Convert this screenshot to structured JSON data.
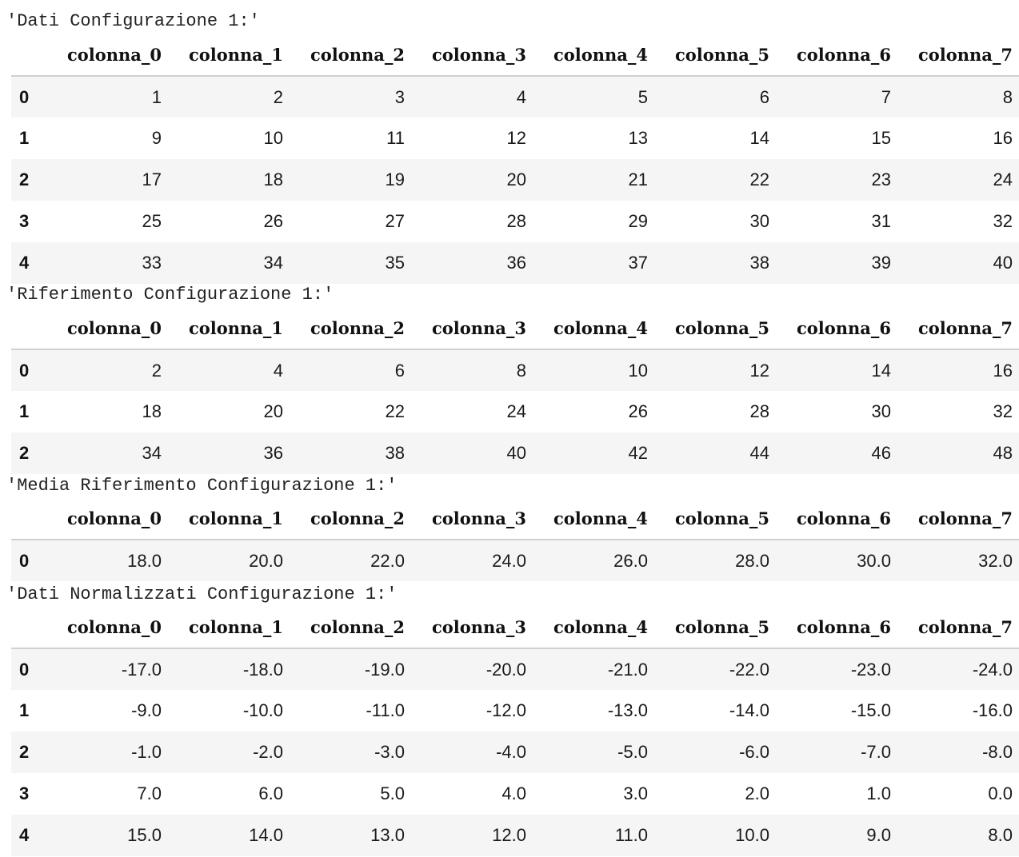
{
  "columns": [
    "colonna_0",
    "colonna_1",
    "colonna_2",
    "colonna_3",
    "colonna_4",
    "colonna_5",
    "colonna_6",
    "colonna_7"
  ],
  "sections": [
    {
      "label": "'Dati Configurazione 1:'",
      "index": [
        "0",
        "1",
        "2",
        "3",
        "4"
      ],
      "rows": [
        [
          "1",
          "2",
          "3",
          "4",
          "5",
          "6",
          "7",
          "8"
        ],
        [
          "9",
          "10",
          "11",
          "12",
          "13",
          "14",
          "15",
          "16"
        ],
        [
          "17",
          "18",
          "19",
          "20",
          "21",
          "22",
          "23",
          "24"
        ],
        [
          "25",
          "26",
          "27",
          "28",
          "29",
          "30",
          "31",
          "32"
        ],
        [
          "33",
          "34",
          "35",
          "36",
          "37",
          "38",
          "39",
          "40"
        ]
      ]
    },
    {
      "label": "'Riferimento Configurazione 1:'",
      "index": [
        "0",
        "1",
        "2"
      ],
      "rows": [
        [
          "2",
          "4",
          "6",
          "8",
          "10",
          "12",
          "14",
          "16"
        ],
        [
          "18",
          "20",
          "22",
          "24",
          "26",
          "28",
          "30",
          "32"
        ],
        [
          "34",
          "36",
          "38",
          "40",
          "42",
          "44",
          "46",
          "48"
        ]
      ]
    },
    {
      "label": "'Media Riferimento Configurazione 1:'",
      "index": [
        "0"
      ],
      "rows": [
        [
          "18.0",
          "20.0",
          "22.0",
          "24.0",
          "26.0",
          "28.0",
          "30.0",
          "32.0"
        ]
      ]
    },
    {
      "label": "'Dati Normalizzati Configurazione 1:'",
      "index": [
        "0",
        "1",
        "2",
        "3",
        "4"
      ],
      "rows": [
        [
          "-17.0",
          "-18.0",
          "-19.0",
          "-20.0",
          "-21.0",
          "-22.0",
          "-23.0",
          "-24.0"
        ],
        [
          "-9.0",
          "-10.0",
          "-11.0",
          "-12.0",
          "-13.0",
          "-14.0",
          "-15.0",
          "-16.0"
        ],
        [
          "-1.0",
          "-2.0",
          "-3.0",
          "-4.0",
          "-5.0",
          "-6.0",
          "-7.0",
          "-8.0"
        ],
        [
          "7.0",
          "6.0",
          "5.0",
          "4.0",
          "3.0",
          "2.0",
          "1.0",
          "0.0"
        ],
        [
          "15.0",
          "14.0",
          "13.0",
          "12.0",
          "11.0",
          "10.0",
          "9.0",
          "8.0"
        ]
      ]
    }
  ]
}
